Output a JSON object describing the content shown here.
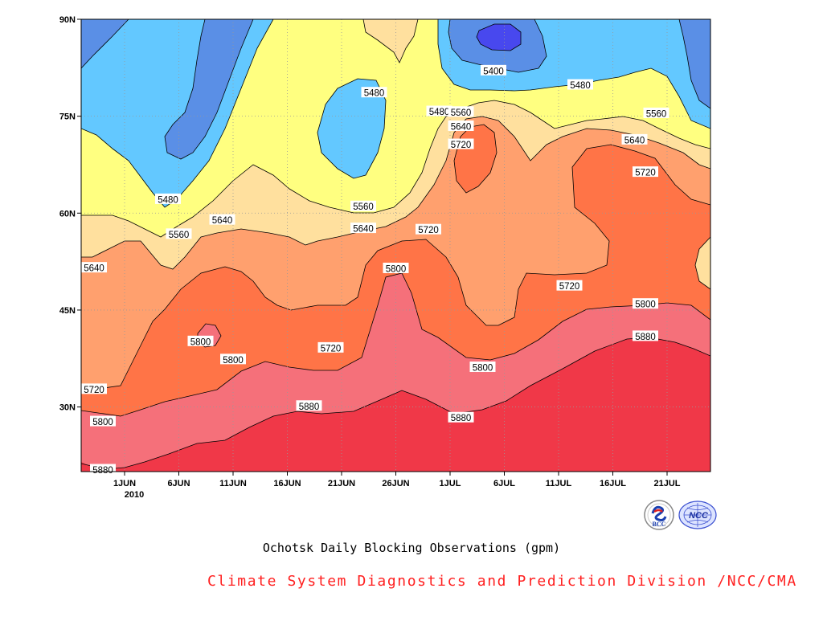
{
  "chart_data": {
    "type": "contour",
    "title": "Ochotsk Daily Blocking Observations (gpm)",
    "x_ticks": [
      "1JUN",
      "6JUN",
      "11JUN",
      "16JUN",
      "21JUN",
      "26JUN",
      "1JUL",
      "6JUL",
      "11JUL",
      "16JUL",
      "21JUL"
    ],
    "x_year": "2010",
    "y_ticks": [
      "90N",
      "75N",
      "60N",
      "45N",
      "30N"
    ],
    "xlim": [
      "2010-05-28",
      "2010-07-25"
    ],
    "ylim": [
      20,
      90
    ],
    "levels": [
      5400,
      5480,
      5560,
      5640,
      5720,
      5800,
      5880
    ],
    "fill_colors": [
      "#4848ee",
      "#5a8fe6",
      "#63c8ff",
      "#ffff80",
      "#ffe09e",
      "#ffa06e",
      "#ff7447",
      "#f5707a",
      "#f03848"
    ],
    "contour_labels": [
      {
        "text": "5400",
        "date": "2010-07-05",
        "lat": 82
      },
      {
        "text": "5480",
        "date": "2010-06-24",
        "lat": 78.6
      },
      {
        "text": "5480",
        "date": "2010-06-30",
        "lat": 75.7
      },
      {
        "text": "5480",
        "date": "2010-07-13",
        "lat": 79.8
      },
      {
        "text": "5480",
        "date": "2010-06-05",
        "lat": 62.1
      },
      {
        "text": "5560",
        "date": "2010-07-02",
        "lat": 75.6
      },
      {
        "text": "5560",
        "date": "2010-07-20",
        "lat": 75.4
      },
      {
        "text": "5560",
        "date": "2010-06-06",
        "lat": 56.7
      },
      {
        "text": "5560",
        "date": "2010-06-23",
        "lat": 61
      },
      {
        "text": "5640",
        "date": "2010-07-02",
        "lat": 73.4
      },
      {
        "text": "5640",
        "date": "2010-07-18",
        "lat": 71.3
      },
      {
        "text": "5640",
        "date": "2010-05-28",
        "lat": 51.5
      },
      {
        "text": "5640",
        "date": "2010-06-10",
        "lat": 58.9
      },
      {
        "text": "5640",
        "date": "2010-06-23",
        "lat": 57.6
      },
      {
        "text": "5720",
        "date": "2010-07-02",
        "lat": 70.6
      },
      {
        "text": "5720",
        "date": "2010-07-19",
        "lat": 66.3
      },
      {
        "text": "5720",
        "date": "2010-06-29",
        "lat": 57.4
      },
      {
        "text": "5720",
        "date": "2010-07-12",
        "lat": 48.7
      },
      {
        "text": "5720",
        "date": "2010-06-20",
        "lat": 39.1
      },
      {
        "text": "5720",
        "date": "2010-05-29",
        "lat": 32.7
      },
      {
        "text": "5800",
        "date": "2010-06-26",
        "lat": 51.4
      },
      {
        "text": "5800",
        "date": "2010-06-08",
        "lat": 40.1
      },
      {
        "text": "5800",
        "date": "2010-06-11",
        "lat": 37.3
      },
      {
        "text": "5800",
        "date": "2010-07-04",
        "lat": 36.1
      },
      {
        "text": "5800",
        "date": "2010-07-19",
        "lat": 45.9
      },
      {
        "text": "5800",
        "date": "2010-05-30",
        "lat": 27.7
      },
      {
        "text": "5880",
        "date": "2010-06-18",
        "lat": 30.1
      },
      {
        "text": "5880",
        "date": "2010-07-02",
        "lat": 28.3
      },
      {
        "text": "5880",
        "date": "2010-07-19",
        "lat": 40.9
      },
      {
        "text": "5880",
        "date": "2010-05-30",
        "lat": 20.1
      }
    ]
  },
  "footer": {
    "caption": "Ochotsk Daily Blocking Observations (gpm)",
    "credit": "Climate System Diagnostics and Prediction Division /NCC/CMA",
    "credit_color": "#ff2020",
    "logos": [
      {
        "name": "bcc-logo",
        "text": "BCC"
      },
      {
        "name": "ncc-logo",
        "text": "NCC"
      }
    ]
  }
}
